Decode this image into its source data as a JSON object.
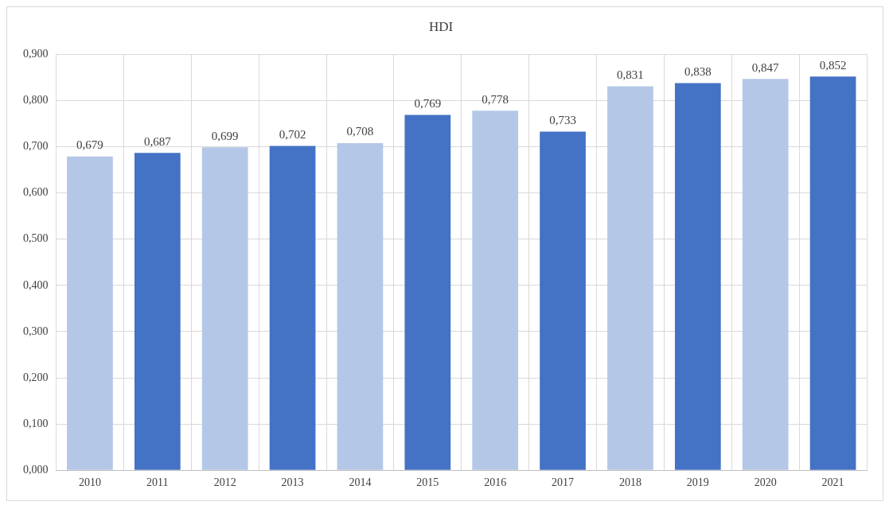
{
  "chart_data": {
    "type": "bar",
    "title": "HDI",
    "categories": [
      "2010",
      "2011",
      "2012",
      "2013",
      "2014",
      "2015",
      "2016",
      "2017",
      "2018",
      "2019",
      "2020",
      "2021"
    ],
    "values": [
      0.679,
      0.687,
      0.699,
      0.702,
      0.708,
      0.769,
      0.778,
      0.733,
      0.831,
      0.838,
      0.847,
      0.852
    ],
    "colors": [
      "#b4c7e7",
      "#4472c4",
      "#b4c7e7",
      "#4472c4",
      "#b4c7e7",
      "#4472c4",
      "#b4c7e7",
      "#4472c4",
      "#b4c7e7",
      "#4472c4",
      "#b4c7e7",
      "#4472c4"
    ],
    "value_labels": [
      "0,679",
      "0,687",
      "0,699",
      "0,702",
      "0,708",
      "0,769",
      "0,778",
      "0,733",
      "0,831",
      "0,838",
      "0,847",
      "0,852"
    ],
    "ylim": [
      0,
      0.9
    ],
    "yticks": [
      {
        "value": 0,
        "label": "0,000"
      },
      {
        "value": 0.1,
        "label": "0,100"
      },
      {
        "value": 0.2,
        "label": "0,200"
      },
      {
        "value": 0.3,
        "label": "0,300"
      },
      {
        "value": 0.4,
        "label": "0,400"
      },
      {
        "value": 0.5,
        "label": "0,500"
      },
      {
        "value": 0.6,
        "label": "0,600"
      },
      {
        "value": 0.7,
        "label": "0,700"
      },
      {
        "value": 0.8,
        "label": "0,800"
      },
      {
        "value": 0.9,
        "label": "0,900"
      }
    ],
    "grid": true,
    "legend": false
  }
}
